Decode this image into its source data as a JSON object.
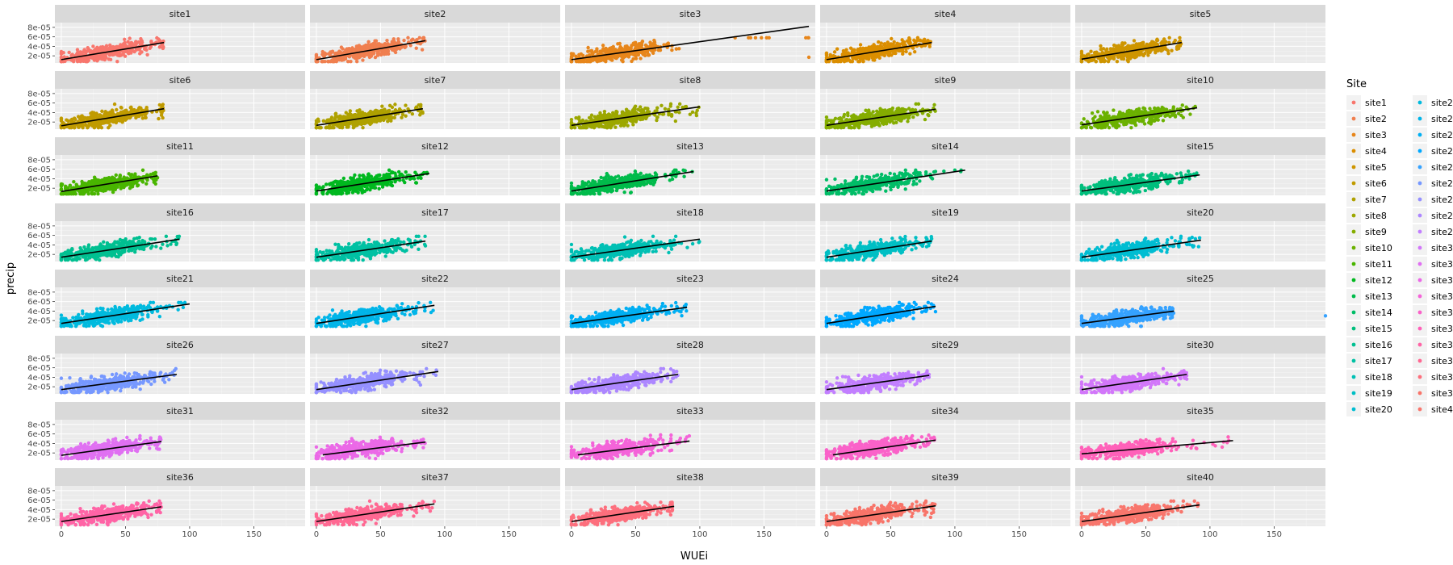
{
  "chart_data": {
    "type": "scatter",
    "facet_layout": {
      "ncol": 5,
      "nrow": 8
    },
    "facets": [
      "site1",
      "site2",
      "site3",
      "site4",
      "site5",
      "site6",
      "site7",
      "site8",
      "site9",
      "site10",
      "site11",
      "site12",
      "site13",
      "site14",
      "site15",
      "site16",
      "site17",
      "site18",
      "site19",
      "site20",
      "site21",
      "site22",
      "site23",
      "site24",
      "site25",
      "site26",
      "site27",
      "site28",
      "site29",
      "site30",
      "site31",
      "site32",
      "site33",
      "site34",
      "site35",
      "site36",
      "site37",
      "site38",
      "site39",
      "site40"
    ],
    "xlabel": "WUEi",
    "ylabel": "precip",
    "xlim": [
      -5,
      190
    ],
    "ylim": [
      5e-06,
      9e-05
    ],
    "x_ticks": [
      0,
      50,
      100,
      150
    ],
    "x_tick_labels": [
      "0",
      "50",
      "100",
      "150"
    ],
    "y_ticks": [
      2e-05,
      4e-05,
      6e-05,
      8e-05
    ],
    "y_tick_labels": [
      "2e-05",
      "4e-05",
      "6e-05",
      "8e-05"
    ],
    "grid": true,
    "series_note": "each facet shows a point cloud colored by Site and a black fitted regression line",
    "fit_lines": [
      {
        "site": "site1",
        "x0": 0,
        "y0": 1.2e-05,
        "x1": 80,
        "y1": 4.8e-05
      },
      {
        "site": "site2",
        "x0": 0,
        "y0": 1.2e-05,
        "x1": 85,
        "y1": 5.2e-05
      },
      {
        "site": "site3",
        "x0": 0,
        "y0": 1.2e-05,
        "x1": 185,
        "y1": 8.2e-05
      },
      {
        "site": "site4",
        "x0": 0,
        "y0": 1.2e-05,
        "x1": 82,
        "y1": 4.8e-05
      },
      {
        "site": "site5",
        "x0": 0,
        "y0": 1.3e-05,
        "x1": 78,
        "y1": 4.8e-05
      },
      {
        "site": "site6",
        "x0": 0,
        "y0": 1.2e-05,
        "x1": 80,
        "y1": 4.8e-05
      },
      {
        "site": "site7",
        "x0": 0,
        "y0": 1.3e-05,
        "x1": 83,
        "y1": 4.8e-05
      },
      {
        "site": "site8",
        "x0": 0,
        "y0": 1.3e-05,
        "x1": 100,
        "y1": 5.2e-05
      },
      {
        "site": "site9",
        "x0": 0,
        "y0": 1.3e-05,
        "x1": 85,
        "y1": 4.7e-05
      },
      {
        "site": "site10",
        "x0": 0,
        "y0": 1.4e-05,
        "x1": 90,
        "y1": 5e-05
      },
      {
        "site": "site11",
        "x0": 0,
        "y0": 1.3e-05,
        "x1": 75,
        "y1": 4.6e-05
      },
      {
        "site": "site12",
        "x0": 0,
        "y0": 1.4e-05,
        "x1": 88,
        "y1": 5.1e-05
      },
      {
        "site": "site13",
        "x0": 0,
        "y0": 1.4e-05,
        "x1": 95,
        "y1": 5.5e-05
      },
      {
        "site": "site14",
        "x0": 0,
        "y0": 1.4e-05,
        "x1": 108,
        "y1": 5.8e-05
      },
      {
        "site": "site15",
        "x0": 0,
        "y0": 1.4e-05,
        "x1": 92,
        "y1": 4.8e-05
      },
      {
        "site": "site16",
        "x0": 0,
        "y0": 1.4e-05,
        "x1": 92,
        "y1": 5.2e-05
      },
      {
        "site": "site17",
        "x0": 0,
        "y0": 1.4e-05,
        "x1": 85,
        "y1": 4.8e-05
      },
      {
        "site": "site18",
        "x0": 0,
        "y0": 1.4e-05,
        "x1": 100,
        "y1": 5.2e-05
      },
      {
        "site": "site19",
        "x0": 0,
        "y0": 1.4e-05,
        "x1": 82,
        "y1": 4.8e-05
      },
      {
        "site": "site20",
        "x0": 0,
        "y0": 1.4e-05,
        "x1": 93,
        "y1": 5e-05
      },
      {
        "site": "site21",
        "x0": 0,
        "y0": 1.4e-05,
        "x1": 100,
        "y1": 5.5e-05
      },
      {
        "site": "site22",
        "x0": 0,
        "y0": 1.4e-05,
        "x1": 92,
        "y1": 5.2e-05
      },
      {
        "site": "site23",
        "x0": 0,
        "y0": 1.4e-05,
        "x1": 90,
        "y1": 4.8e-05
      },
      {
        "site": "site24",
        "x0": 0,
        "y0": 1.4e-05,
        "x1": 85,
        "y1": 5e-05
      },
      {
        "site": "site25",
        "x0": 0,
        "y0": 1.4e-05,
        "x1": 72,
        "y1": 4e-05
      },
      {
        "site": "site26",
        "x0": 0,
        "y0": 1.4e-05,
        "x1": 90,
        "y1": 4.6e-05
      },
      {
        "site": "site27",
        "x0": 0,
        "y0": 1.4e-05,
        "x1": 95,
        "y1": 5.2e-05
      },
      {
        "site": "site28",
        "x0": 0,
        "y0": 1.4e-05,
        "x1": 83,
        "y1": 4.6e-05
      },
      {
        "site": "site29",
        "x0": 0,
        "y0": 1.4e-05,
        "x1": 80,
        "y1": 4.4e-05
      },
      {
        "site": "site30",
        "x0": 0,
        "y0": 1.4e-05,
        "x1": 82,
        "y1": 4.6e-05
      },
      {
        "site": "site31",
        "x0": 0,
        "y0": 1.5e-05,
        "x1": 78,
        "y1": 4.4e-05
      },
      {
        "site": "site32",
        "x0": 5,
        "y0": 1.6e-05,
        "x1": 85,
        "y1": 4.3e-05
      },
      {
        "site": "site33",
        "x0": 5,
        "y0": 1.6e-05,
        "x1": 92,
        "y1": 4.5e-05
      },
      {
        "site": "site34",
        "x0": 5,
        "y0": 1.6e-05,
        "x1": 85,
        "y1": 4.7e-05
      },
      {
        "site": "site35",
        "x0": 0,
        "y0": 1.8e-05,
        "x1": 118,
        "y1": 4.6e-05
      },
      {
        "site": "site36",
        "x0": 0,
        "y0": 1.5e-05,
        "x1": 78,
        "y1": 4.6e-05
      },
      {
        "site": "site37",
        "x0": 0,
        "y0": 1.5e-05,
        "x1": 92,
        "y1": 5.2e-05
      },
      {
        "site": "site38",
        "x0": 0,
        "y0": 1.5e-05,
        "x1": 80,
        "y1": 4.7e-05
      },
      {
        "site": "site39",
        "x0": 0,
        "y0": 1.5e-05,
        "x1": 85,
        "y1": 4.8e-05
      },
      {
        "site": "site40",
        "x0": 0,
        "y0": 1.5e-05,
        "x1": 92,
        "y1": 5e-05
      }
    ],
    "outliers": [
      {
        "site": "site3",
        "x": 185,
        "y": 1.7e-05
      },
      {
        "site": "site25",
        "x": 190,
        "y": 3e-05
      }
    ]
  },
  "legend": {
    "title": "Site",
    "items": [
      "site1",
      "site2",
      "site3",
      "site4",
      "site5",
      "site6",
      "site7",
      "site8",
      "site9",
      "site10",
      "site11",
      "site12",
      "site13",
      "site14",
      "site15",
      "site16",
      "site17",
      "site18",
      "site19",
      "site20",
      "site21",
      "site22",
      "site23",
      "site24",
      "site25",
      "site26",
      "site27",
      "site28",
      "site29",
      "site30",
      "site31",
      "site32",
      "site33",
      "site34",
      "site35",
      "site36",
      "site37",
      "site38",
      "site39",
      "site40"
    ]
  },
  "colors": {
    "panel_bg": "#ebebeb",
    "strip_bg": "#d9d9d9",
    "grid_major": "#ffffff",
    "fit_line": "#000000",
    "palette": [
      "#F8766D",
      "#F07F4F",
      "#E7861B",
      "#DB8E00",
      "#CE9500",
      "#C09B00",
      "#AFA100",
      "#9CA700",
      "#85AD00",
      "#6BB100",
      "#49B500",
      "#00B81F",
      "#00BB4B",
      "#00BD67",
      "#00BF7D",
      "#00C091",
      "#00C1A3",
      "#00C0B4",
      "#00BFC4",
      "#00BDD2",
      "#00BADE",
      "#00B5E9",
      "#00AFF3",
      "#00A8FF",
      "#35A2FF",
      "#7698FF",
      "#9590FF",
      "#AD87FF",
      "#C27FFF",
      "#D277FA",
      "#E070F2",
      "#EB69E7",
      "#F464D9",
      "#FA62C9",
      "#FF61B9",
      "#FF64A6",
      "#FF6892",
      "#FD6F7D",
      "#F87469",
      "#F8766D"
    ]
  }
}
